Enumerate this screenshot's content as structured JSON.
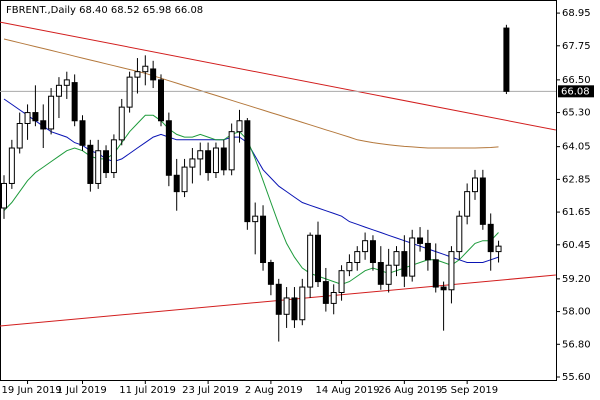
{
  "chart_data": {
    "type": "candlestick",
    "header": "FBRENT.,Daily  68.40 68.52 65.98 66.08",
    "categories": [
      null,
      null,
      null,
      "19 Jun 2019",
      null,
      null,
      null,
      null,
      null,
      null,
      "1 Jul 2019",
      null,
      null,
      null,
      null,
      null,
      null,
      null,
      "11 Jul 2019",
      null,
      null,
      null,
      null,
      null,
      null,
      null,
      "23 Jul 2019",
      null,
      null,
      null,
      null,
      null,
      null,
      null,
      "2 Aug 2019",
      null,
      null,
      null,
      null,
      null,
      null,
      null,
      null,
      "14 Aug 2019",
      null,
      null,
      null,
      null,
      null,
      null,
      null,
      "26 Aug 2019",
      null,
      null,
      null,
      null,
      null,
      null,
      null,
      "5 Sep 2019",
      null,
      null,
      null,
      null,
      null
    ],
    "open": [
      61.8,
      62.7,
      64.0,
      64.9,
      65.3,
      65.0,
      64.7,
      65.9,
      66.3,
      66.4,
      65.0,
      64.1,
      62.7,
      63.9,
      63.1,
      64.3,
      65.5,
      66.6,
      66.8,
      66.9,
      66.5,
      65.0,
      63.0,
      62.4,
      63.3,
      63.6,
      63.9,
      63.1,
      64.0,
      63.2,
      64.6,
      65.0,
      61.3,
      61.5,
      59.8,
      59.0,
      57.9,
      58.5,
      57.7,
      58.9,
      60.8,
      59.1,
      58.3,
      58.7,
      59.5,
      59.8,
      60.2,
      60.6,
      59.8,
      59.0,
      59.7,
      60.2,
      59.3,
      60.7,
      60.5,
      59.9,
      58.9,
      58.8,
      60.2,
      61.5,
      62.4,
      62.9,
      61.2,
      60.2,
      68.4
    ],
    "high": [
      63.0,
      64.3,
      65.3,
      65.6,
      66.3,
      65.6,
      66.2,
      66.6,
      66.8,
      66.7,
      65.2,
      64.3,
      64.3,
      64.1,
      64.5,
      65.8,
      66.8,
      67.3,
      67.4,
      67.2,
      66.7,
      65.3,
      63.6,
      63.6,
      64.0,
      64.2,
      64.2,
      64.2,
      64.3,
      64.9,
      65.4,
      65.1,
      62.0,
      61.9,
      59.9,
      59.2,
      58.9,
      58.9,
      59.2,
      60.9,
      61.3,
      59.6,
      59.0,
      59.7,
      60.1,
      60.4,
      60.9,
      60.8,
      60.4,
      60.3,
      60.4,
      60.8,
      61.0,
      61.1,
      61.0,
      60.5,
      59.1,
      60.4,
      61.7,
      62.7,
      63.2,
      63.2,
      61.6,
      60.6,
      68.52
    ],
    "low": [
      61.4,
      62.5,
      63.8,
      64.3,
      64.8,
      64.0,
      64.5,
      65.1,
      65.8,
      64.8,
      63.9,
      62.4,
      62.5,
      62.9,
      62.9,
      64.1,
      65.3,
      66.0,
      66.3,
      66.2,
      64.8,
      62.6,
      61.7,
      62.2,
      62.7,
      63.0,
      62.8,
      62.9,
      63.0,
      63.0,
      64.2,
      61.0,
      60.1,
      59.5,
      58.6,
      56.9,
      57.4,
      57.4,
      57.5,
      58.5,
      58.9,
      58.0,
      57.9,
      58.4,
      59.3,
      59.5,
      59.9,
      59.5,
      58.8,
      58.7,
      59.3,
      58.9,
      59.1,
      60.2,
      59.5,
      58.7,
      57.3,
      58.3,
      59.9,
      61.2,
      62.1,
      61.0,
      59.5,
      59.8,
      65.98
    ],
    "close": [
      62.7,
      64.0,
      64.9,
      65.3,
      65.0,
      64.7,
      65.9,
      66.3,
      66.5,
      65.0,
      64.1,
      62.7,
      63.9,
      63.1,
      64.3,
      65.5,
      66.6,
      66.8,
      67.0,
      66.5,
      65.0,
      63.0,
      62.4,
      63.3,
      63.6,
      63.9,
      63.1,
      64.0,
      63.2,
      64.6,
      65.0,
      61.3,
      61.5,
      59.8,
      59.0,
      57.9,
      58.5,
      57.7,
      58.9,
      60.8,
      59.1,
      58.3,
      58.7,
      59.5,
      59.8,
      60.2,
      60.6,
      59.8,
      59.0,
      59.7,
      60.2,
      59.3,
      60.7,
      60.5,
      59.9,
      58.9,
      58.8,
      60.2,
      61.5,
      62.4,
      62.9,
      61.2,
      60.2,
      60.4,
      66.08
    ],
    "series": [
      {
        "color": "#0a14b4",
        "values": [
          65.8,
          65.6,
          65.4,
          65.2,
          65.0,
          64.8,
          64.6,
          64.5,
          64.4,
          64.2,
          64.1,
          63.9,
          63.8,
          63.6,
          63.5,
          63.6,
          63.8,
          64.0,
          64.2,
          64.4,
          64.5,
          64.4,
          64.3,
          64.3,
          64.3,
          64.3,
          64.3,
          64.3,
          64.3,
          64.4,
          64.4,
          64.2,
          63.7,
          63.2,
          62.9,
          62.6,
          62.4,
          62.2,
          62.0,
          61.9,
          61.8,
          61.7,
          61.6,
          61.5,
          61.3,
          61.2,
          61.1,
          61.0,
          60.9,
          60.8,
          60.7,
          60.6,
          60.5,
          60.4,
          60.3,
          60.2,
          60.1,
          60.0,
          59.9,
          59.8,
          59.8,
          59.8,
          59.9,
          60.0,
          null
        ]
      },
      {
        "color": "#1e9b3c",
        "values": [
          61.7,
          62.0,
          62.4,
          62.8,
          63.1,
          63.3,
          63.5,
          63.7,
          63.9,
          64.0,
          63.9,
          63.7,
          63.6,
          63.6,
          63.8,
          64.2,
          64.6,
          64.9,
          65.2,
          65.2,
          65.0,
          64.7,
          64.5,
          64.4,
          64.4,
          64.5,
          64.4,
          64.3,
          64.3,
          64.5,
          64.6,
          64.3,
          63.6,
          62.8,
          62.0,
          61.2,
          60.5,
          60.0,
          59.6,
          59.4,
          59.3,
          59.2,
          59.1,
          59.0,
          59.1,
          59.3,
          59.5,
          59.6,
          59.5,
          59.4,
          59.5,
          59.6,
          59.7,
          59.8,
          59.9,
          59.9,
          59.8,
          59.7,
          59.9,
          60.2,
          60.5,
          60.6,
          60.6,
          60.9,
          null
        ]
      },
      {
        "color": "#b4783c",
        "values": [
          68.0,
          67.93,
          67.86,
          67.79,
          67.72,
          67.65,
          67.58,
          67.51,
          67.44,
          67.37,
          67.3,
          67.23,
          67.16,
          67.09,
          67.02,
          66.95,
          66.88,
          66.81,
          66.74,
          66.65,
          66.56,
          66.47,
          66.38,
          66.29,
          66.2,
          66.11,
          66.02,
          65.93,
          65.84,
          65.75,
          65.66,
          65.57,
          65.48,
          65.39,
          65.3,
          65.21,
          65.12,
          65.03,
          64.94,
          64.85,
          64.76,
          64.67,
          64.58,
          64.49,
          64.4,
          64.3,
          64.25,
          64.2,
          64.16,
          64.12,
          64.09,
          64.06,
          64.04,
          64.02,
          64.0,
          64.0,
          64.0,
          64.0,
          64.0,
          64.0,
          64.0,
          64.01,
          64.02,
          64.04,
          null
        ]
      }
    ],
    "trendlines": [
      {
        "color": "#d21e1e",
        "start": [
          -0.5,
          68.62
        ],
        "end": [
          70.3,
          64.66
        ]
      },
      {
        "color": "#d21e1e",
        "start": [
          -0.5,
          57.47
        ],
        "end": [
          70.3,
          59.34
        ]
      }
    ],
    "ylim": [
      55.49,
      69.43
    ],
    "yticks": [
      68.95,
      67.75,
      {
        "value": 66.5,
        "label": "66.50"
      },
      {
        "value": 65.3,
        "label": "65.30"
      },
      64.05,
      62.85,
      61.65,
      60.45,
      {
        "value": 59.2,
        "label": "59.20"
      },
      {
        "value": 58,
        "label": "58.00"
      },
      {
        "value": 56.8,
        "label": "56.80"
      },
      {
        "value": 55.6,
        "label": "55.60"
      }
    ]
  }
}
